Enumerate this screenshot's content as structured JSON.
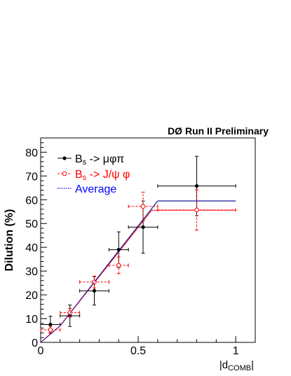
{
  "header": {
    "title": "DØ Run II Preliminary"
  },
  "chart_data": {
    "type": "scatter",
    "title": "DØ Run II Preliminary",
    "xlabel": "|d",
    "xlabel_sub": "COMB",
    "xlabel_close": "|",
    "ylabel": "Dilution (%)",
    "xlim": [
      0,
      1.1
    ],
    "ylim": [
      0,
      86
    ],
    "x_ticks": [
      0,
      0.5,
      1
    ],
    "x_tick_labels": [
      "0",
      "0.5",
      "1"
    ],
    "y_ticks": [
      0,
      10,
      20,
      30,
      40,
      50,
      60,
      70,
      80
    ],
    "y_tick_labels": [
      "0",
      "10",
      "20",
      "30",
      "40",
      "50",
      "60",
      "70",
      "80"
    ],
    "legend_position": "top-left",
    "series": [
      {
        "key": "bs_muphipi",
        "legend_main": "B",
        "legend_sub": "s",
        "legend_rest": " -> μφπ",
        "color": "#000000",
        "marker": "filled-circle",
        "line": "solid",
        "points": [
          {
            "x": 0.05,
            "y": 7.5,
            "xerr": 0.05,
            "yerr": 3.5
          },
          {
            "x": 0.15,
            "y": 11.2,
            "xerr": 0.05,
            "yerr": 4.5
          },
          {
            "x": 0.275,
            "y": 21.7,
            "xerr": 0.075,
            "yerr": 6.0
          },
          {
            "x": 0.4,
            "y": 39.0,
            "xerr": 0.05,
            "yerr": 7.5
          },
          {
            "x": 0.525,
            "y": 48.5,
            "xerr": 0.075,
            "yerr": 11.0
          },
          {
            "x": 0.8,
            "y": 65.8,
            "xerr": 0.2,
            "yerr": 12.5
          }
        ]
      },
      {
        "key": "bs_jpsiphi",
        "legend_main": "B",
        "legend_sub": "s",
        "legend_rest": " -> J/ψ φ",
        "color": "#ff0000",
        "marker": "open-circle",
        "line": "dashed",
        "points": [
          {
            "x": 0.05,
            "y": 5.3,
            "xerr": 0.05,
            "yerr": 1.5
          },
          {
            "x": 0.15,
            "y": 12.5,
            "xerr": 0.05,
            "yerr": 1.8
          },
          {
            "x": 0.275,
            "y": 25.4,
            "xerr": 0.075,
            "yerr": 2.5
          },
          {
            "x": 0.4,
            "y": 32.4,
            "xerr": 0.05,
            "yerr": 3.5
          },
          {
            "x": 0.525,
            "y": 57.2,
            "xerr": 0.075,
            "yerr": 6.0
          },
          {
            "x": 0.8,
            "y": 55.7,
            "xerr": 0.2,
            "yerr": 8.5
          }
        ]
      },
      {
        "key": "average",
        "legend_main": "Average",
        "legend_sub": "",
        "legend_rest": "",
        "color": "#0000ff",
        "marker": "none",
        "line": "dotted",
        "curve": [
          {
            "x": 0.0,
            "y": 0.0
          },
          {
            "x": 0.1,
            "y": 7.0
          },
          {
            "x": 0.6,
            "y": 59.5
          },
          {
            "x": 1.0,
            "y": 59.5
          }
        ]
      }
    ],
    "fits": [
      {
        "color": "#000000",
        "curve": [
          {
            "x": 0.0,
            "y": 0.0
          },
          {
            "x": 0.1,
            "y": 7.0
          },
          {
            "x": 0.6,
            "y": 59.5
          },
          {
            "x": 1.0,
            "y": 59.5
          }
        ]
      },
      {
        "color": "#ff0000",
        "curve": [
          {
            "x": 0.0,
            "y": 0.0
          },
          {
            "x": 0.1,
            "y": 7.0
          },
          {
            "x": 0.57,
            "y": 55.6
          },
          {
            "x": 1.0,
            "y": 55.6
          }
        ]
      }
    ]
  }
}
